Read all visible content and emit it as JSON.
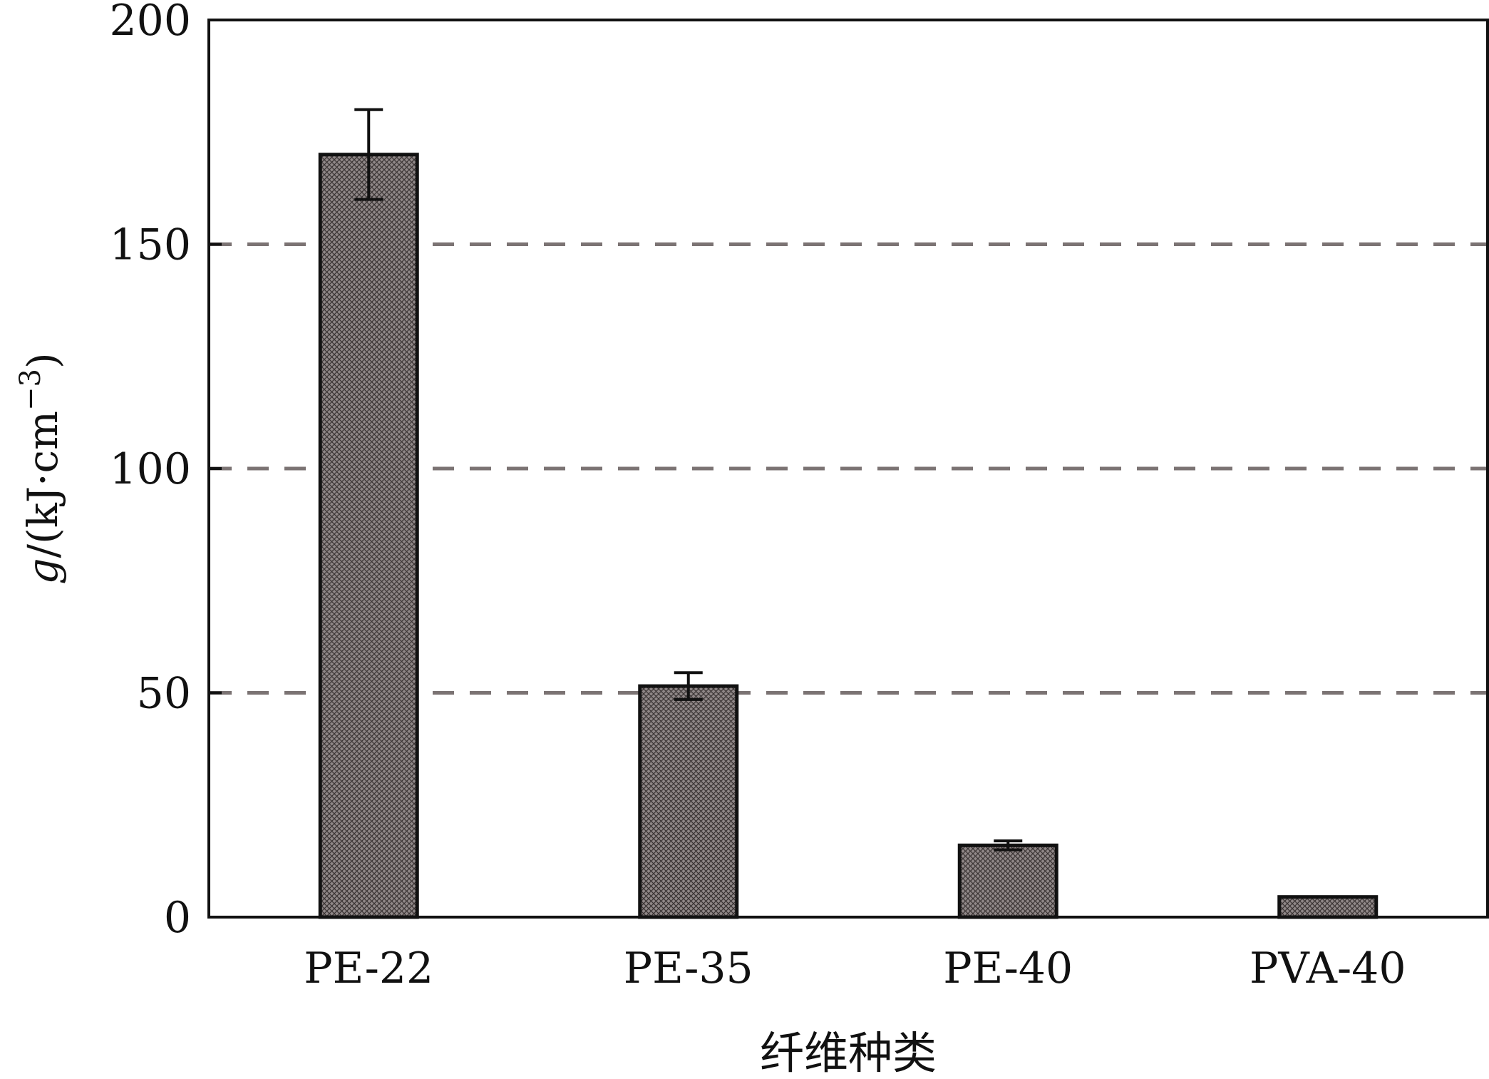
{
  "chart_data": {
    "type": "bar",
    "categories": [
      "PE-22",
      "PE-35",
      "PE-40",
      "PVA-40"
    ],
    "values": [
      170,
      51.5,
      16,
      4.5
    ],
    "error": [
      10,
      3,
      1,
      0
    ],
    "xlabel": "纤维种类",
    "ylabel_var": "g",
    "ylabel_unit": "/(kJ·cm",
    "ylabel_exp": "−3",
    "ylabel_close": ")",
    "ylim": [
      0,
      200
    ],
    "yticks": [
      0,
      50,
      100,
      150,
      200
    ],
    "grid": "dashed horizontal at 50, 100, 150",
    "bar_color": "#8a8282",
    "grid_color": "#7b7373"
  }
}
